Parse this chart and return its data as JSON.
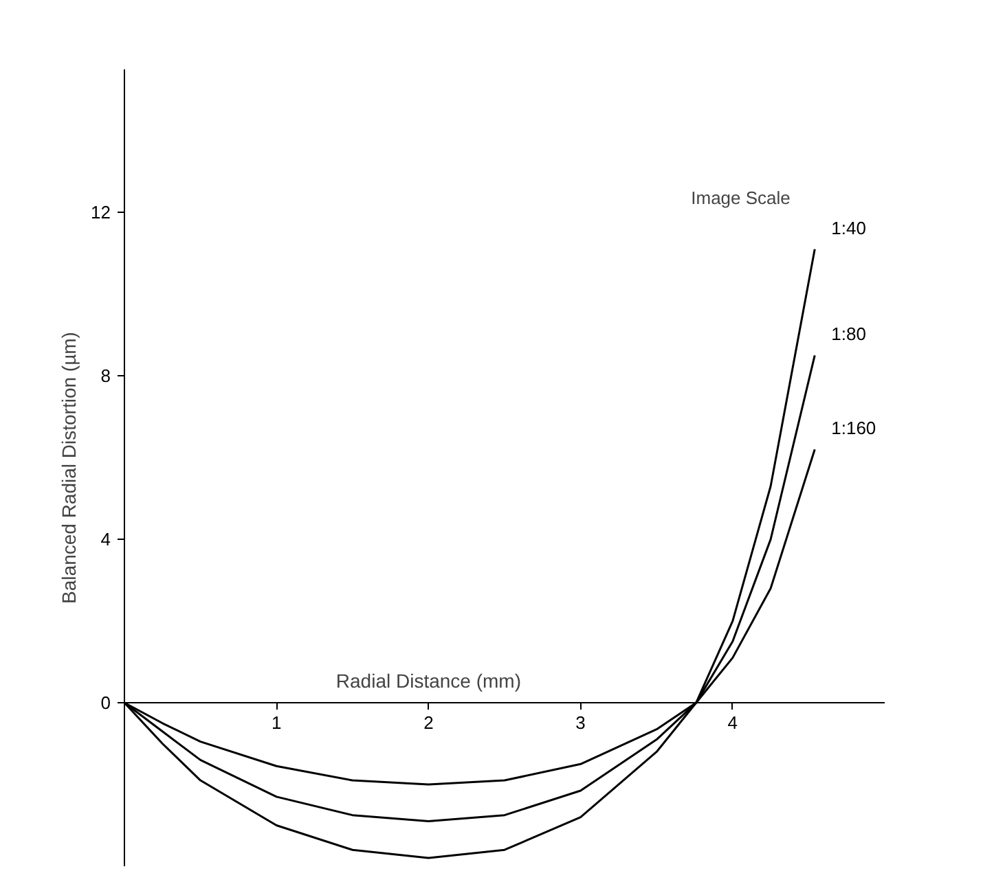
{
  "chart_data": {
    "type": "line",
    "xlabel": "Radial Distance (mm)",
    "ylabel": "Balanced Radial Distortion (µm)",
    "legend_title": "Image Scale",
    "x": [
      0,
      0.25,
      0.5,
      1,
      1.5,
      2,
      2.5,
      3,
      3.5,
      3.76,
      4,
      4.25,
      4.54
    ],
    "series": [
      {
        "name": "1:40",
        "color": "#000000",
        "values": [
          0,
          -1.0,
          -1.9,
          -3.0,
          -3.6,
          -3.8,
          -3.6,
          -2.8,
          -1.2,
          0,
          2.0,
          5.3,
          11.1
        ]
      },
      {
        "name": "1:80",
        "color": "#000000",
        "values": [
          0,
          -0.7,
          -1.4,
          -2.3,
          -2.75,
          -2.9,
          -2.75,
          -2.15,
          -0.9,
          0,
          1.5,
          4.0,
          8.5
        ]
      },
      {
        "name": "1:160",
        "color": "#000000",
        "values": [
          0,
          -0.5,
          -0.95,
          -1.55,
          -1.9,
          -2.0,
          -1.9,
          -1.5,
          -0.65,
          0,
          1.1,
          2.8,
          6.2
        ]
      }
    ],
    "xlim": [
      0,
      5
    ],
    "ylim": [
      -4,
      15.5
    ],
    "xticks": [
      1,
      2,
      3,
      4
    ],
    "yticks": [
      0,
      4,
      8,
      12
    ],
    "grid": false,
    "legend": false,
    "marker": "none",
    "line_style": "solid"
  }
}
